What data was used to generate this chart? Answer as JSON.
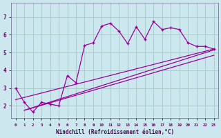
{
  "xlabel": "Windchill (Refroidissement éolien,°C)",
  "bg_color": "#cce8ee",
  "grid_color": "#aacccc",
  "line_color": "#990099",
  "xlim": [
    -0.5,
    23.5
  ],
  "ylim": [
    1.3,
    7.8
  ],
  "xticks": [
    0,
    1,
    2,
    3,
    4,
    5,
    6,
    7,
    8,
    9,
    10,
    11,
    12,
    13,
    14,
    15,
    16,
    17,
    18,
    19,
    20,
    21,
    22,
    23
  ],
  "yticks": [
    2,
    3,
    4,
    5,
    6,
    7
  ],
  "line1_x": [
    0,
    1,
    2,
    3,
    4,
    5,
    6,
    7,
    8,
    9,
    10,
    11,
    12,
    13,
    14,
    15,
    16,
    17,
    18,
    19,
    20,
    21,
    22,
    23
  ],
  "line1_y": [
    3.0,
    2.2,
    1.65,
    2.2,
    2.1,
    2.0,
    3.7,
    3.3,
    5.4,
    5.55,
    6.5,
    6.65,
    6.2,
    5.5,
    6.45,
    5.75,
    6.75,
    6.3,
    6.4,
    6.3,
    5.55,
    5.35,
    5.35,
    5.2
  ],
  "line2_x": [
    1,
    23
  ],
  "line2_y": [
    1.75,
    5.15
  ],
  "line3_x": [
    1,
    23
  ],
  "line3_y": [
    1.75,
    4.85
  ],
  "line4_x": [
    0,
    23
  ],
  "line4_y": [
    2.35,
    5.2
  ]
}
